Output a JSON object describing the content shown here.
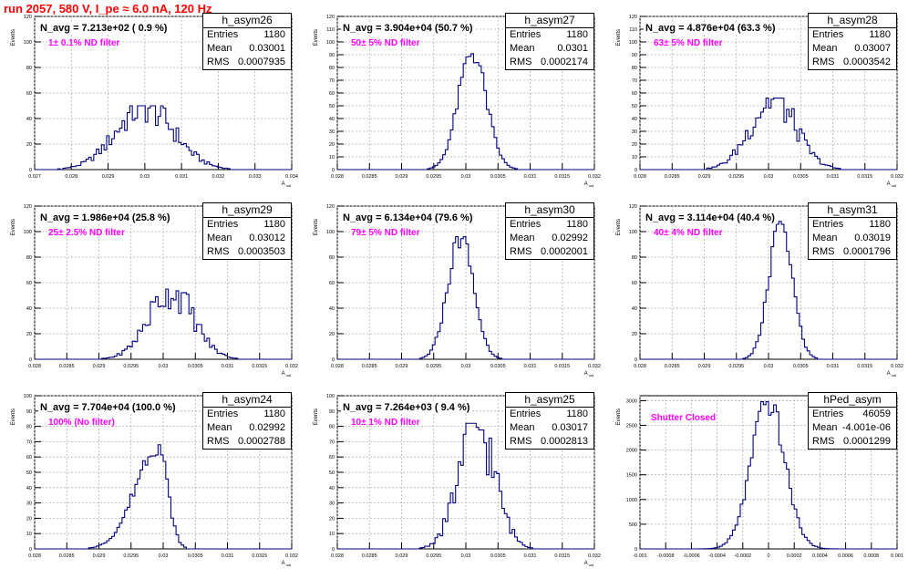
{
  "title": "run 2057,   580 V, I_pe ≈ 6.0 nA, 120 Hz",
  "colors": {
    "title": "#ff0000",
    "histogram": "#000080",
    "filter_label": "#ff00ff",
    "grid": "#b0b0b0"
  },
  "chart_data": [
    {
      "type": "histogram",
      "name": "h_asym26",
      "entries": "1180",
      "mean": "0.03001",
      "rms": "0.0007935",
      "navg": "N_avg = 7.213e+02 ( 0.9 %)",
      "filter": "1± 0.1% ND filter",
      "ylabel": "Events",
      "xlabel": "A_uid",
      "xticks": [
        "0.027",
        "0.028",
        "0.029",
        "0.03",
        "0.031",
        "0.032",
        "0.033",
        "0.034"
      ],
      "yticks": [
        "0",
        "20",
        "40",
        "60",
        "80",
        "100",
        "120"
      ],
      "xlim": [
        0.027,
        0.034
      ],
      "ylim": [
        0,
        120
      ],
      "mean_val": 0.03001,
      "rms_val": 0.0007935,
      "peak": 50,
      "shape": "noisy"
    },
    {
      "type": "histogram",
      "name": "h_asym27",
      "entries": "1180",
      "mean": "0.0301",
      "rms": "0.0002174",
      "navg": "N_avg = 3.904e+04 (50.7 %)",
      "filter": "50± 5% ND filter",
      "ylabel": "Events",
      "xlabel": "A_uid",
      "xticks": [
        "0.028",
        "0.0285",
        "0.029",
        "0.0295",
        "0.03",
        "0.0305",
        "0.031",
        "0.0315",
        "0.032"
      ],
      "yticks": [
        "0",
        "10",
        "20",
        "30",
        "40",
        "50",
        "60",
        "70",
        "80",
        "90",
        "100",
        "110",
        "120"
      ],
      "xlim": [
        0.028,
        0.032
      ],
      "ylim": [
        0,
        120
      ],
      "mean_val": 0.0301,
      "rms_val": 0.0002174,
      "peak": 92,
      "shape": "gauss"
    },
    {
      "type": "histogram",
      "name": "h_asym28",
      "entries": "1180",
      "mean": "0.03007",
      "rms": "0.0003542",
      "navg": "N_avg = 4.876e+04 (63.3 %)",
      "filter": "63± 5% ND filter",
      "ylabel": "Events",
      "xlabel": "A_uid",
      "xticks": [
        "0.028",
        "0.0285",
        "0.029",
        "0.0295",
        "0.03",
        "0.0305",
        "0.031",
        "0.0315",
        "0.032"
      ],
      "yticks": [
        "0",
        "10",
        "20",
        "30",
        "40",
        "50",
        "60",
        "70",
        "80",
        "90",
        "100",
        "110",
        "120"
      ],
      "xlim": [
        0.028,
        0.032
      ],
      "ylim": [
        0,
        120
      ],
      "mean_val": 0.03007,
      "rms_val": 0.0003542,
      "peak": 56,
      "shape": "noisy"
    },
    {
      "type": "histogram",
      "name": "h_asym29",
      "entries": "1180",
      "mean": "0.03012",
      "rms": "0.0003503",
      "navg": "N_avg = 1.986e+04 (25.8 %)",
      "filter": "25± 2.5% ND filter",
      "ylabel": "Events",
      "xlabel": "A_uid",
      "xticks": [
        "0.028",
        "0.0285",
        "0.029",
        "0.0295",
        "0.03",
        "0.0305",
        "0.031",
        "0.0315",
        "0.032"
      ],
      "yticks": [
        "0",
        "20",
        "40",
        "60",
        "80",
        "100",
        "120"
      ],
      "xlim": [
        0.028,
        0.032
      ],
      "ylim": [
        0,
        120
      ],
      "mean_val": 0.03012,
      "rms_val": 0.0003503,
      "peak": 55,
      "shape": "noisy"
    },
    {
      "type": "histogram",
      "name": "h_asym30",
      "entries": "1180",
      "mean": "0.02992",
      "rms": "0.0002001",
      "navg": "N_avg = 6.134e+04 (79.6 %)",
      "filter": "79± 5% ND filter",
      "ylabel": "Events",
      "xlabel": "A_uid",
      "xticks": [
        "0.028",
        "0.0285",
        "0.029",
        "0.0295",
        "0.03",
        "0.0305",
        "0.031",
        "0.0315",
        "0.032"
      ],
      "yticks": [
        "0",
        "20",
        "40",
        "60",
        "80",
        "100",
        "120"
      ],
      "xlim": [
        0.028,
        0.032
      ],
      "ylim": [
        0,
        120
      ],
      "mean_val": 0.02992,
      "rms_val": 0.0002001,
      "peak": 96,
      "shape": "gauss"
    },
    {
      "type": "histogram",
      "name": "h_asym31",
      "entries": "1180",
      "mean": "0.03019",
      "rms": "0.0001796",
      "navg": "N_avg = 3.114e+04 (40.4 %)",
      "filter": "40± 4% ND filter",
      "ylabel": "Events",
      "xlabel": "A_uid",
      "xticks": [
        "0.028",
        "0.0285",
        "0.029",
        "0.0295",
        "0.03",
        "0.0305",
        "0.031",
        "0.0315",
        "0.032"
      ],
      "yticks": [
        "0",
        "20",
        "40",
        "60",
        "80",
        "100",
        "120"
      ],
      "xlim": [
        0.028,
        0.032
      ],
      "ylim": [
        0,
        120
      ],
      "mean_val": 0.03019,
      "rms_val": 0.0001796,
      "peak": 108,
      "shape": "gauss"
    },
    {
      "type": "histogram",
      "name": "h_asym24",
      "entries": "1180",
      "mean": "0.02992",
      "rms": "0.0002788",
      "navg": "N_avg = 7.704e+04 (100.0 %)",
      "filter": "100% (No filter)",
      "ylabel": "Events",
      "xlabel": "A_uid",
      "xticks": [
        "0.028",
        "0.0285",
        "0.029",
        "0.0295",
        "0.03",
        "0.0305",
        "0.031",
        "0.0315",
        "0.032"
      ],
      "yticks": [
        "0",
        "10",
        "20",
        "30",
        "40",
        "50",
        "60",
        "70",
        "80",
        "90",
        "100"
      ],
      "xlim": [
        0.028,
        0.032
      ],
      "ylim": [
        0,
        100
      ],
      "mean_val": 0.02992,
      "rms_val": 0.0002788,
      "peak": 68,
      "shape": "skew"
    },
    {
      "type": "histogram",
      "name": "h_asym25",
      "entries": "1180",
      "mean": "0.03017",
      "rms": "0.0002813",
      "navg": "N_avg = 7.264e+03 ( 9.4 %)",
      "filter": "10± 1% ND filter",
      "ylabel": "Events",
      "xlabel": "A_uid",
      "xticks": [
        "0.028",
        "0.0285",
        "0.029",
        "0.0295",
        "0.03",
        "0.0305",
        "0.031",
        "0.0315",
        "0.032"
      ],
      "yticks": [
        "0",
        "10",
        "20",
        "30",
        "40",
        "50",
        "60",
        "70",
        "80",
        "90",
        "100"
      ],
      "xlim": [
        0.028,
        0.032
      ],
      "ylim": [
        0,
        100
      ],
      "mean_val": 0.03017,
      "rms_val": 0.0002813,
      "peak": 82,
      "shape": "noisy"
    },
    {
      "type": "histogram",
      "name": "hPed_asym",
      "entries": "46059",
      "mean": "-4.001e-06",
      "rms": "0.0001299",
      "navg": "",
      "filter": "Shutter Closed",
      "ylabel": "Events",
      "xlabel": "",
      "xticks": [
        "-0.001",
        "-0.0008",
        "-0.0006",
        "-0.0004",
        "-0.0002",
        "0",
        "0.0002",
        "0.0004",
        "0.0006",
        "0.0008",
        "0.001"
      ],
      "yticks": [
        "0",
        "500",
        "1000",
        "1500",
        "2000",
        "2500",
        "3000"
      ],
      "xlim": [
        -0.001,
        0.001
      ],
      "ylim": [
        0,
        3100
      ],
      "mean_val": -4e-06,
      "rms_val": 0.0001299,
      "peak": 2980,
      "shape": "gauss"
    }
  ]
}
